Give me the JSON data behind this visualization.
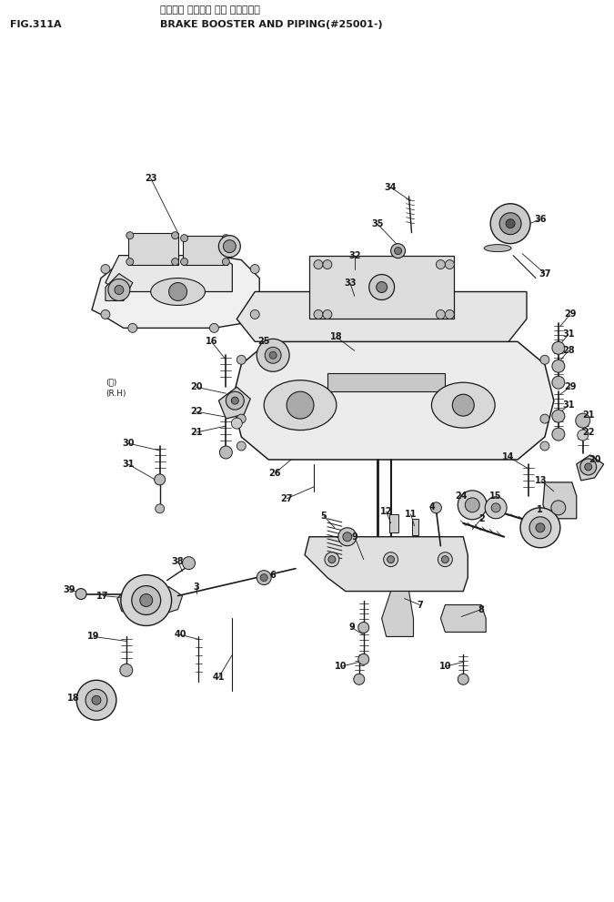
{
  "title_jp": "ブレーキ ブースタ 配管 パイピング",
  "title_en": "BRAKE BOOSTER AND PIPING(#25001-)",
  "fig_label": "FIG.311A",
  "bg_color": "#ffffff",
  "lc": "#1a1a1a",
  "tc": "#1a1a1a",
  "fig_w": 6.75,
  "fig_h": 9.91,
  "dpi": 100
}
